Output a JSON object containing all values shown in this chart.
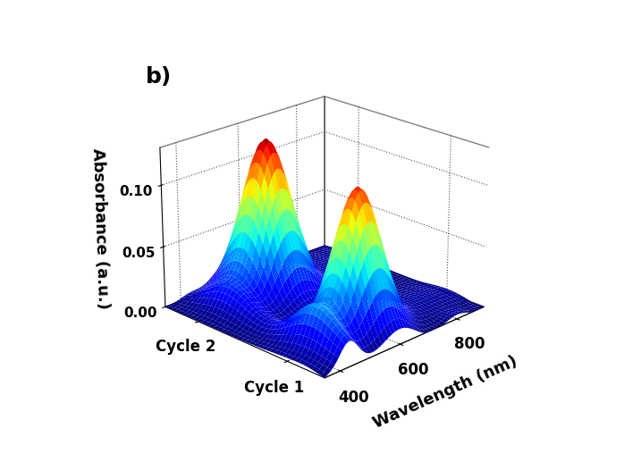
{
  "title": "b)",
  "xlabel": "Wavelength (nm)",
  "zlabel": "Absorbance (a.u.)",
  "wavelength_min": 350,
  "wavelength_max": 900,
  "num_wavelength": 200,
  "num_cycles": 80,
  "peak_wavelength": 580,
  "peak_absorbance_cycle1": 0.115,
  "peak_absorbance_cycle2": 0.128,
  "zlim": [
    0.0,
    0.13
  ],
  "zticks": [
    0.0,
    0.05,
    0.1
  ],
  "background_color": "white",
  "colormap": "jet",
  "figsize": [
    6.98,
    5.17
  ],
  "dpi": 100,
  "cycle_labels": [
    "Cycle 1",
    "Cycle 2"
  ],
  "wl_ticks": [
    400,
    600,
    800
  ],
  "elev": 22,
  "azim": 225
}
